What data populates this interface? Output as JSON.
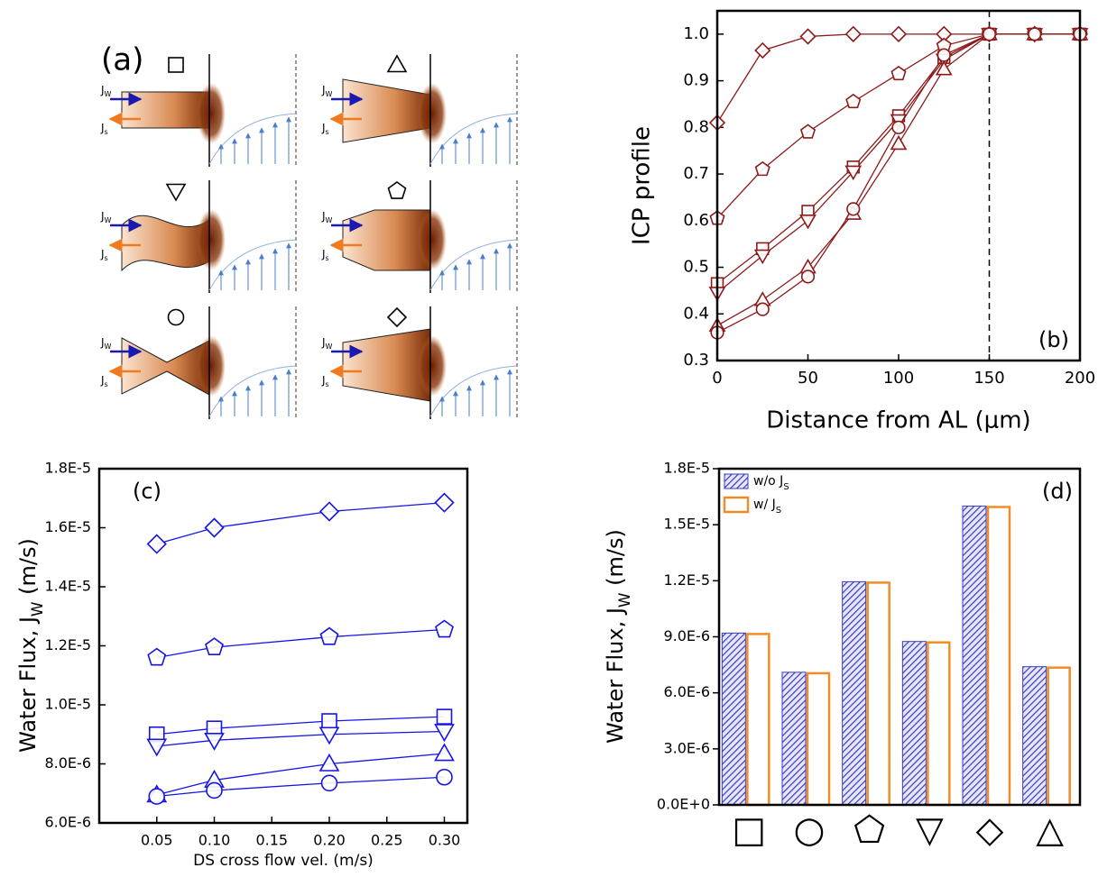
{
  "diagram": {
    "label": "(a)",
    "water_flux": {
      "symbol": "J",
      "subscript": "W"
    },
    "solute_flux": {
      "symbol": "J",
      "subscript": "s"
    }
  },
  "chart_data": [
    {
      "type": "line",
      "annotation": "(b)",
      "x_label": "Distance from AL  (μm)",
      "y_label": "ICP profile",
      "x": [
        0,
        25,
        50,
        75,
        100,
        125,
        150,
        175,
        200
      ],
      "xlim": [
        0,
        200
      ],
      "xticks": [
        0,
        50,
        100,
        150,
        200
      ],
      "ylim": [
        0.3,
        1.05
      ],
      "yticks": [
        0.3,
        0.4,
        0.5,
        0.6,
        0.7,
        0.8,
        0.9,
        {
          "value": 1,
          "label": "1.0"
        }
      ],
      "vline": 150,
      "color": "#8b1a1a",
      "series": [
        {
          "marker": "diamond",
          "values": [
            0.81,
            0.965,
            0.995,
            1,
            1,
            1,
            1,
            1,
            1
          ]
        },
        {
          "marker": "pentagon",
          "values": [
            0.605,
            0.71,
            0.79,
            0.855,
            0.915,
            0.975,
            1,
            1,
            1
          ]
        },
        {
          "marker": "square",
          "values": [
            0.465,
            0.54,
            0.62,
            0.715,
            0.825,
            0.95,
            1,
            1,
            1
          ]
        },
        {
          "marker": "triangle-down",
          "values": [
            0.445,
            0.525,
            0.6,
            0.705,
            0.815,
            0.945,
            1,
            1,
            1
          ]
        },
        {
          "marker": "triangle-up",
          "values": [
            0.375,
            0.43,
            0.5,
            0.615,
            0.765,
            0.925,
            1,
            1,
            1
          ]
        },
        {
          "marker": "circle",
          "values": [
            0.36,
            0.41,
            0.48,
            0.625,
            0.8,
            0.955,
            1,
            1,
            1
          ]
        }
      ]
    },
    {
      "type": "line",
      "annotation": "(c)",
      "x_label": "DS cross flow vel.  (m/s)",
      "y_label": [
        "Water Flux, J",
        "W",
        "  (m/s)"
      ],
      "x": [
        0.05,
        0.1,
        0.2,
        0.3
      ],
      "xlim": [
        0,
        0.32
      ],
      "xticks": [
        0.05,
        {
          "value": 0.1,
          "label": "0.10"
        },
        0.15,
        {
          "value": 0.2,
          "label": "0.20"
        },
        0.25,
        {
          "value": 0.3,
          "label": "0.30"
        }
      ],
      "ylim": [
        6e-06,
        1.8e-05
      ],
      "yticks": [
        {
          "value": 6e-06,
          "label": "6.0E-6"
        },
        {
          "value": 8e-06,
          "label": "8.0E-6"
        },
        {
          "value": 1e-05,
          "label": "1.0E-5"
        },
        {
          "value": 1.2e-05,
          "label": "1.2E-5"
        },
        {
          "value": 1.4e-05,
          "label": "1.4E-5"
        },
        {
          "value": 1.6e-05,
          "label": "1.6E-5"
        },
        {
          "value": 1.8e-05,
          "label": "1.8E-5"
        }
      ],
      "color": "#1414e6",
      "series": [
        {
          "marker": "diamond",
          "values": [
            1.545e-05,
            1.6e-05,
            1.655e-05,
            1.685e-05
          ]
        },
        {
          "marker": "pentagon",
          "values": [
            1.16e-05,
            1.195e-05,
            1.23e-05,
            1.255e-05
          ]
        },
        {
          "marker": "square",
          "values": [
            9e-06,
            9.2e-06,
            9.45e-06,
            9.6e-06
          ]
        },
        {
          "marker": "triangle-down",
          "values": [
            8.6e-06,
            8.8e-06,
            9e-06,
            9.1e-06
          ]
        },
        {
          "marker": "triangle-up",
          "values": [
            6.95e-06,
            7.45e-06,
            8e-06,
            8.35e-06
          ]
        },
        {
          "marker": "circle",
          "values": [
            6.9e-06,
            7.1e-06,
            7.35e-06,
            7.55e-06
          ]
        }
      ]
    },
    {
      "type": "bar",
      "annotation": "(d)",
      "y_label": [
        "Water Flux, J",
        "W",
        "  (m/s)"
      ],
      "categories": [
        "□",
        "○",
        "⬠",
        "▽",
        "◇",
        "△"
      ],
      "ylim": [
        0,
        1.8e-05
      ],
      "yticks": [
        {
          "value": 0,
          "label": "0.0E+0"
        },
        {
          "value": 3e-06,
          "label": "3.0E-6"
        },
        {
          "value": 6e-06,
          "label": "6.0E-6"
        },
        {
          "value": 9e-06,
          "label": "9.0E-6"
        },
        {
          "value": 1.2e-05,
          "label": "1.2E-5"
        },
        {
          "value": 1.5e-05,
          "label": "1.5E-5"
        },
        {
          "value": 1.8e-05,
          "label": "1.8E-5"
        }
      ],
      "legend": "upper left",
      "series": [
        {
          "name": "w/o J",
          "name_subscript": "S",
          "color": "#3a3ac0",
          "hatch": true,
          "values": [
            9.2e-06,
            7.1e-06,
            1.195e-05,
            8.75e-06,
            1.6e-05,
            7.4e-06
          ]
        },
        {
          "name": "w/ J",
          "name_subscript": "S",
          "color": "#f28c28",
          "hatch": false,
          "values": [
            9.15e-06,
            7.05e-06,
            1.19e-05,
            8.7e-06,
            1.595e-05,
            7.35e-06
          ]
        }
      ]
    }
  ]
}
